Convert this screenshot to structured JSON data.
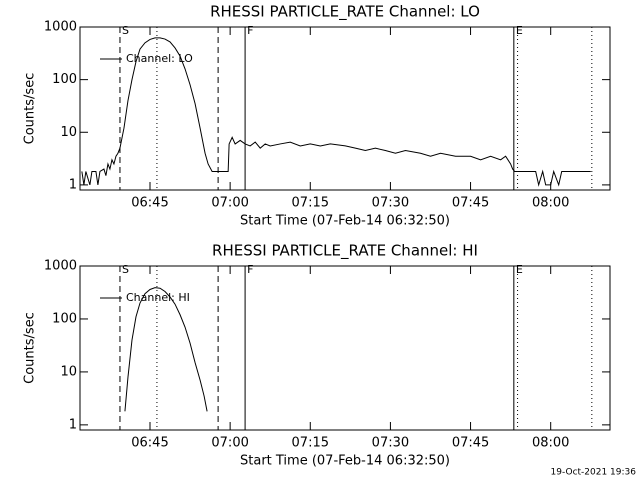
{
  "chart_data": [
    {
      "type": "line",
      "title": "RHESSI PARTICLE_RATE Channel: LO",
      "x_label": "Start Time (07-Feb-14 06:32:50)",
      "y_label": "Counts/sec",
      "log_y": true,
      "legend": "upper left",
      "xlim": [
        391.9,
        491.1
      ],
      "ylim": [
        0.8,
        1000
      ],
      "xticks": [
        {
          "value": 405,
          "label": "06:45"
        },
        {
          "value": 420,
          "label": "07:00"
        },
        {
          "value": 435,
          "label": "07:15"
        },
        {
          "value": 450,
          "label": "07:30"
        },
        {
          "value": 465,
          "label": "07:45"
        },
        {
          "value": 480,
          "label": "08:00"
        }
      ],
      "yticks": [
        1,
        10,
        100,
        1000
      ],
      "markers": [
        {
          "x": 399.38,
          "style": "dashed",
          "label": "S"
        },
        {
          "x": 406.3,
          "style": "dotted"
        },
        {
          "x": 417.75,
          "style": "dashed"
        },
        {
          "x": 422.8,
          "style": "solid",
          "label": "F"
        },
        {
          "x": 473.1,
          "style": "solid",
          "label": "E"
        },
        {
          "x": 473.8,
          "style": "dotted"
        },
        {
          "x": 487.7,
          "style": "dotted"
        }
      ],
      "series": [
        {
          "name": "Channel: LO",
          "color": "#000000",
          "x": [
            392.25,
            392.63,
            393.0,
            393.75,
            394.13,
            394.88,
            395.25,
            395.63,
            396.38,
            396.75,
            397.13,
            397.5,
            397.88,
            398.25,
            398.63,
            399.0,
            399.38,
            400.13,
            400.88,
            401.63,
            402.38,
            403.13,
            404.06,
            405,
            405.94,
            406.88,
            407.81,
            408.75,
            409.69,
            410.63,
            411.56,
            412.5,
            413.44,
            414.38,
            415.31,
            415.88,
            416.63,
            419.63,
            419.81,
            420.38,
            420.94,
            421.88,
            422.81,
            423.75,
            424.69,
            425.63,
            426.56,
            427.5,
            429.38,
            431.25,
            433.13,
            435,
            436.88,
            438.75,
            441.56,
            443.44,
            445.31,
            447.19,
            449.06,
            450.94,
            452.81,
            455.63,
            457.5,
            459.38,
            462.19,
            465,
            466.88,
            468.75,
            470.63,
            471.56,
            472.5,
            472.88,
            473.25,
            477.19,
            477.75,
            478.5,
            479.06,
            480,
            480.56,
            481.5,
            482.06,
            487.5
          ],
          "values": [
            1.8,
            1,
            1.8,
            1,
            1.8,
            1.8,
            1,
            1.8,
            2,
            1.5,
            2.5,
            2,
            3,
            2.5,
            3.5,
            4,
            5,
            12,
            40,
            100,
            220,
            380,
            500,
            580,
            620,
            620,
            590,
            520,
            400,
            280,
            160,
            80,
            35,
            12,
            4,
            2.5,
            1.8,
            1.8,
            6,
            8,
            6,
            7,
            6,
            5.5,
            6.5,
            5,
            6,
            5.5,
            6,
            6.5,
            5.5,
            6,
            5.5,
            6,
            5.5,
            5,
            4.5,
            5,
            4.5,
            4,
            4.5,
            4,
            3.5,
            4,
            3.5,
            3.5,
            3,
            3.5,
            3,
            3.5,
            2.5,
            2,
            1.8,
            1.8,
            1,
            1.8,
            1,
            1,
            1.8,
            1,
            1.8,
            1.8
          ]
        }
      ]
    },
    {
      "type": "line",
      "title": "RHESSI PARTICLE_RATE Channel: HI",
      "x_label": "Start Time (07-Feb-14 06:32:50)",
      "y_label": "Counts/sec",
      "log_y": true,
      "legend": "upper left",
      "xlim": [
        391.9,
        491.1
      ],
      "ylim": [
        0.8,
        1000
      ],
      "xticks": [
        {
          "value": 405,
          "label": "06:45"
        },
        {
          "value": 420,
          "label": "07:00"
        },
        {
          "value": 435,
          "label": "07:15"
        },
        {
          "value": 450,
          "label": "07:30"
        },
        {
          "value": 465,
          "label": "07:45"
        },
        {
          "value": 480,
          "label": "08:00"
        }
      ],
      "yticks": [
        1,
        10,
        100,
        1000
      ],
      "markers": [
        {
          "x": 399.38,
          "style": "dashed",
          "label": "S"
        },
        {
          "x": 406.3,
          "style": "dotted"
        },
        {
          "x": 417.75,
          "style": "dashed"
        },
        {
          "x": 422.8,
          "style": "solid",
          "label": "F"
        },
        {
          "x": 473.1,
          "style": "solid",
          "label": "E"
        },
        {
          "x": 473.8,
          "style": "dotted"
        },
        {
          "x": 487.7,
          "style": "dotted"
        }
      ],
      "series": [
        {
          "name": "Channel: HI",
          "color": "#000000",
          "x": [
            400.31,
            400.88,
            401.63,
            402.38,
            403.13,
            404.06,
            405,
            405.94,
            406.88,
            407.81,
            408.75,
            409.69,
            410.63,
            411.56,
            412.5,
            413.44,
            414.38,
            415.13,
            415.69
          ],
          "values": [
            1.8,
            8,
            40,
            110,
            200,
            300,
            360,
            390,
            380,
            330,
            260,
            190,
            120,
            70,
            35,
            15,
            7,
            3.5,
            1.8
          ]
        }
      ]
    }
  ],
  "footer": "19-Oct-2021 19:36"
}
